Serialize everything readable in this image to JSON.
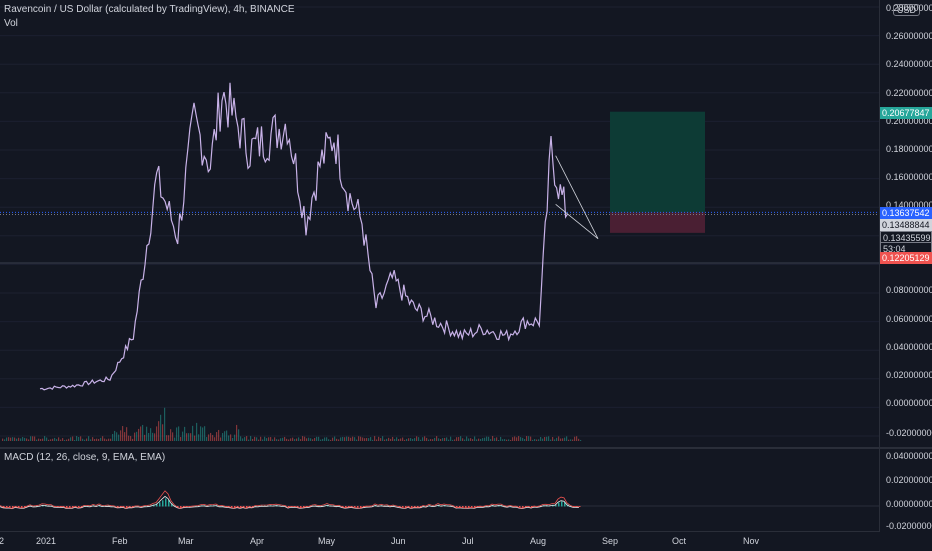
{
  "header": {
    "title": "Ravencoin / US Dollar (calculated by TradingView), 4h, BINANCE",
    "volume_label": "Vol"
  },
  "currency_button": "USD",
  "macd": {
    "label": "MACD (12, 26, close, 9, EMA, EMA)",
    "ticks": [
      "0.04000000",
      "0.02000000",
      "0.00000000",
      "-0.02000000"
    ]
  },
  "price_scale": {
    "ticks": [
      "0.28000000",
      "0.26000000",
      "0.24000000",
      "0.22000000",
      "0.20000000",
      "0.18000000",
      "0.16000000",
      "0.14000000",
      "0.08000000",
      "0.06000000",
      "0.04000000",
      "0.02000000",
      "0.00000000",
      "-0.02000000"
    ],
    "labels": {
      "target": "0.20677847",
      "price_a": "0.13637542",
      "price_b": "0.13488844",
      "current": "0.13435599",
      "countdown": "53:04",
      "stop": "0.12205129"
    }
  },
  "time_axis": [
    "2",
    "2021",
    "Feb",
    "Mar",
    "Apr",
    "May",
    "Jun",
    "Jul",
    "Aug",
    "Sep",
    "Oct",
    "Nov"
  ],
  "colors": {
    "background": "#131722",
    "candle": "#c8b2e8",
    "profit_zone": "#0d3b35",
    "loss_zone": "#4a1f33",
    "target_label": "#26a69a",
    "stop_label": "#ef5350",
    "macd_line": "#ef5350",
    "signal_line": "#e8e8e8"
  },
  "chart_data": {
    "type": "line",
    "title": "Ravencoin / US Dollar (calculated by TradingView), 4h, BINANCE",
    "x": [
      "2021-01-01",
      "2021-01-15",
      "2021-01-31",
      "2021-02-10",
      "2021-02-20",
      "2021-03-01",
      "2021-03-08",
      "2021-03-15",
      "2021-03-20",
      "2021-04-01",
      "2021-04-10",
      "2021-04-17",
      "2021-04-25",
      "2021-05-01",
      "2021-05-07",
      "2021-05-13",
      "2021-05-19",
      "2021-05-25",
      "2021-06-01",
      "2021-06-10",
      "2021-06-20",
      "2021-07-01",
      "2021-07-10",
      "2021-07-20",
      "2021-07-28",
      "2021-08-03",
      "2021-08-08",
      "2021-08-12",
      "2021-08-15"
    ],
    "series": [
      {
        "values": [
          0.013,
          0.015,
          0.02,
          0.05,
          0.16,
          0.12,
          0.2,
          0.17,
          0.22,
          0.18,
          0.19,
          0.2,
          0.13,
          0.17,
          0.19,
          0.15,
          0.13,
          0.07,
          0.09,
          0.07,
          0.06,
          0.05,
          0.055,
          0.05,
          0.06,
          0.06,
          0.18,
          0.15,
          0.135
        ]
      }
    ],
    "ylim": [
      -0.02,
      0.28
    ],
    "position": {
      "target": 0.20677847,
      "entry": 0.13637542,
      "stop": 0.12205129
    }
  }
}
